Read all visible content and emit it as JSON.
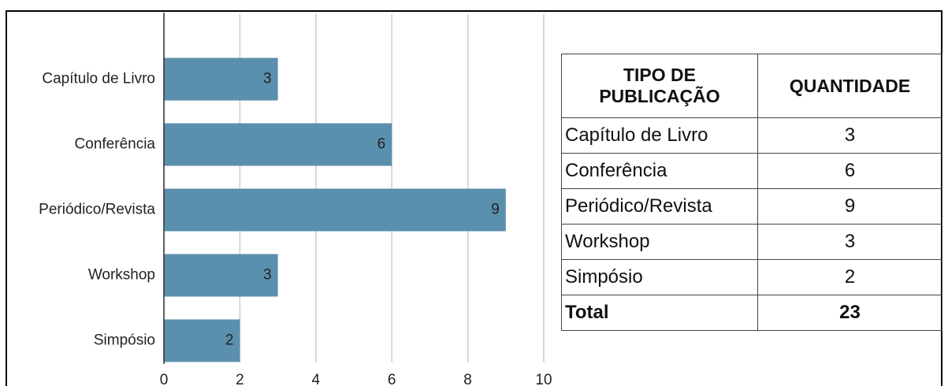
{
  "chart_data": {
    "type": "bar",
    "orientation": "horizontal",
    "categories": [
      "Capítulo de Livro",
      "Conferência",
      "Periódico/Revista",
      "Workshop",
      "Simpósio"
    ],
    "values": [
      3,
      6,
      9,
      3,
      2
    ],
    "color": "#5a8fae",
    "xlim": [
      0,
      10
    ],
    "xticks": [
      0,
      2,
      4,
      6,
      8,
      10
    ],
    "grid": true
  },
  "table": {
    "header": [
      "TIPO DE PUBLICAÇÃO",
      "QUANTIDADE"
    ],
    "rows": [
      [
        "Capítulo de Livro",
        3
      ],
      [
        "Conferência",
        6
      ],
      [
        "Periódico/Revista",
        9
      ],
      [
        "Workshop",
        3
      ],
      [
        "Simpósio",
        2
      ]
    ],
    "total": [
      "Total",
      23
    ]
  }
}
